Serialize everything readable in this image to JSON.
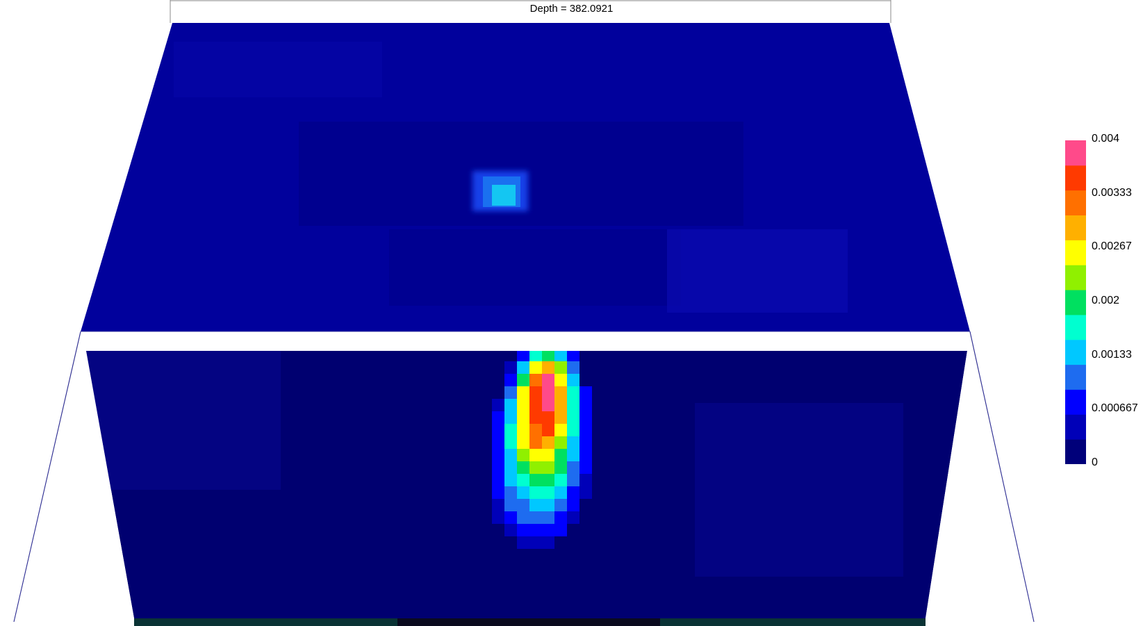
{
  "title": {
    "label": "Depth =",
    "value": "382.0921"
  },
  "colorbar": {
    "min": 0,
    "max": 0.004,
    "ticks": [
      {
        "value": 0.004,
        "label": "0.004"
      },
      {
        "value": 0.00333,
        "label": "0.00333"
      },
      {
        "value": 0.00267,
        "label": "0.00267"
      },
      {
        "value": 0.002,
        "label": "0.002"
      },
      {
        "value": 0.00133,
        "label": "0.00133"
      },
      {
        "value": 0.000667,
        "label": "0.000667"
      },
      {
        "value": 0,
        "label": "0"
      }
    ],
    "colors": [
      "#00007a",
      "#0000b8",
      "#0000ff",
      "#1e6cf0",
      "#00c8ff",
      "#00ffd0",
      "#00e060",
      "#90f000",
      "#ffff00",
      "#ffb000",
      "#ff7000",
      "#ff3a00",
      "#ff4a8a"
    ]
  },
  "plume": {
    "peak_value": 0.004,
    "shallow_spot_value": 0.0011
  }
}
